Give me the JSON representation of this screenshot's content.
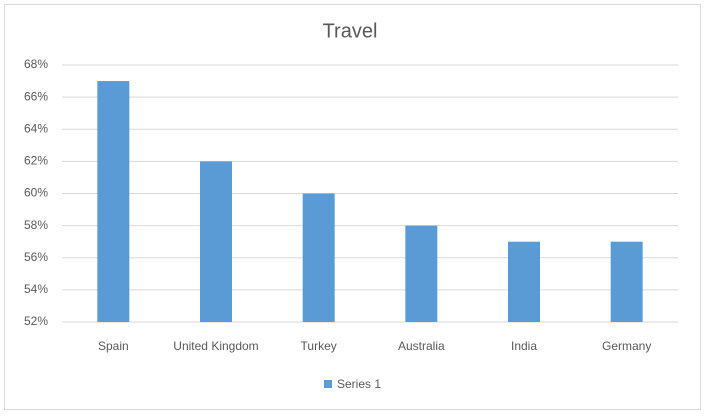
{
  "chart_data": {
    "type": "bar",
    "title": "Travel",
    "categories": [
      "Spain",
      "United Kingdom",
      "Turkey",
      "Australia",
      "India",
      "Germany"
    ],
    "series": [
      {
        "name": "Series 1",
        "color": "#5b9bd5",
        "values": [
          67,
          62,
          60,
          58,
          57,
          57
        ]
      }
    ],
    "ylim": [
      52,
      68
    ],
    "yticks": [
      {
        "value": 52,
        "label": "52%"
      },
      {
        "value": 54,
        "label": "54%"
      },
      {
        "value": 56,
        "label": "56%"
      },
      {
        "value": 58,
        "label": "58%"
      },
      {
        "value": 60,
        "label": "60%"
      },
      {
        "value": 62,
        "label": "62%"
      },
      {
        "value": 64,
        "label": "64%"
      },
      {
        "value": 66,
        "label": "66%"
      },
      {
        "value": 68,
        "label": "68%"
      }
    ],
    "grid": true,
    "legend": "bottom"
  }
}
